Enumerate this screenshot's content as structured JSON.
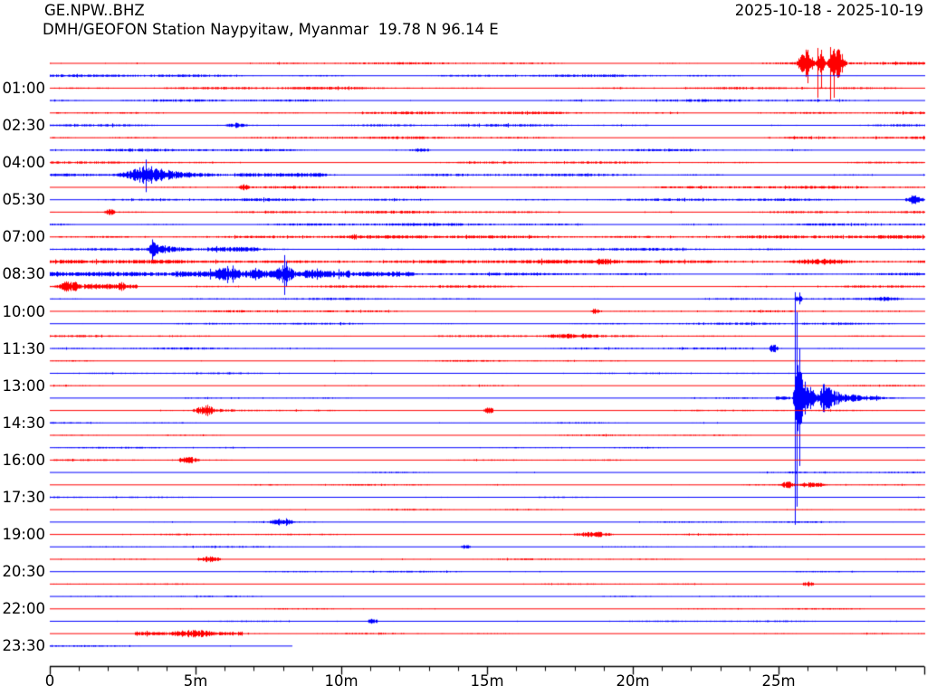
{
  "header": {
    "station_id": "GE.NPW..BHZ",
    "date_range": "2025-10-18 - 2025-10-19",
    "station_info": "DMH/GEOFON Station Naypyitaw, Myanmar  19.78 N 96.14 E"
  },
  "chart_data": {
    "type": "helicorder-dayplot",
    "channel": "GE.NPW..BHZ",
    "title": "GE.NPW..BHZ",
    "subtitle": "DMH/GEOFON Station Naypyitaw, Myanmar  19.78 N 96.14 E",
    "date_start": "2025-10-18",
    "date_end": "2025-10-19",
    "minutes_per_row": 30,
    "num_rows": 48,
    "x_axis_total_min": 30,
    "x_minor_tick_every_min": 1,
    "last_row_end_min": 8.3,
    "trace_colors": [
      "#ff0000",
      "#0000ff"
    ],
    "axis_color": "#000000",
    "background_color": "#ffffff",
    "y_ticks": [
      {
        "row": 2,
        "label": "01:00"
      },
      {
        "row": 5,
        "label": "02:30"
      },
      {
        "row": 8,
        "label": "04:00"
      },
      {
        "row": 11,
        "label": "05:30"
      },
      {
        "row": 14,
        "label": "07:00"
      },
      {
        "row": 17,
        "label": "08:30"
      },
      {
        "row": 20,
        "label": "10:00"
      },
      {
        "row": 23,
        "label": "11:30"
      },
      {
        "row": 26,
        "label": "13:00"
      },
      {
        "row": 29,
        "label": "14:30"
      },
      {
        "row": 32,
        "label": "16:00"
      },
      {
        "row": 35,
        "label": "17:30"
      },
      {
        "row": 38,
        "label": "19:00"
      },
      {
        "row": 41,
        "label": "20:30"
      },
      {
        "row": 44,
        "label": "22:00"
      },
      {
        "row": 47,
        "label": "23:30"
      }
    ],
    "x_ticks": [
      {
        "min": 0,
        "label": "0"
      },
      {
        "min": 5,
        "label": "5m"
      },
      {
        "min": 10,
        "label": "10m"
      },
      {
        "min": 15,
        "label": "15m"
      },
      {
        "min": 20,
        "label": "20m"
      },
      {
        "min": 25,
        "label": "25m"
      }
    ],
    "row_base_noise": [
      {
        "rows": [
          0,
          18
        ],
        "amp": 1.15
      },
      {
        "rows": [
          19,
          23
        ],
        "amp": 0.95
      },
      {
        "rows": [
          24,
          47
        ],
        "amp": 0.7
      }
    ],
    "events": [
      {
        "row": 0,
        "kind": "blob",
        "t0": 25.6,
        "t1": 26.25,
        "amp": 13
      },
      {
        "row": 0,
        "kind": "blob",
        "t0": 26.25,
        "t1": 26.62,
        "amp": 11
      },
      {
        "row": 0,
        "kind": "blob",
        "t0": 26.62,
        "t1": 27.35,
        "amp": 15
      },
      {
        "row": 0,
        "kind": "spike",
        "t": 26.0,
        "up": 15,
        "down": 22
      },
      {
        "row": 0,
        "kind": "spike",
        "t": 26.34,
        "up": 17,
        "down": 38
      },
      {
        "row": 0,
        "kind": "spike",
        "t": 26.46,
        "up": 15,
        "down": 28
      },
      {
        "row": 0,
        "kind": "spike",
        "t": 26.77,
        "up": 18,
        "down": 40
      },
      {
        "row": 0,
        "kind": "spike",
        "t": 26.9,
        "up": 16,
        "down": 38
      },
      {
        "row": 0,
        "kind": "spike",
        "t": 27.02,
        "up": 13,
        "down": 16
      },
      {
        "row": 5,
        "kind": "blob",
        "t0": 6.0,
        "t1": 6.8,
        "amp": 2.2
      },
      {
        "row": 7,
        "kind": "blob",
        "t0": 12.3,
        "t1": 13.1,
        "amp": 1.8
      },
      {
        "row": 9,
        "kind": "quake",
        "t0": 1.9,
        "peak": 3.3,
        "t1": 6.3,
        "amp": 10.5
      },
      {
        "row": 9,
        "kind": "spike",
        "t": 3.3,
        "up": 17,
        "down": 19
      },
      {
        "row": 9,
        "kind": "level",
        "t0": 6.3,
        "t1": 9.5,
        "amp": 1.6
      },
      {
        "row": 10,
        "kind": "blob",
        "t0": 6.45,
        "t1": 6.85,
        "amp": 2.8
      },
      {
        "row": 11,
        "kind": "blob",
        "t0": 29.3,
        "t1": 30.0,
        "amp": 4.5
      },
      {
        "row": 12,
        "kind": "blob",
        "t0": 1.85,
        "t1": 2.25,
        "amp": 3.2
      },
      {
        "row": 14,
        "kind": "level",
        "t0": 0,
        "t1": 30,
        "amp": 0.4
      },
      {
        "row": 15,
        "kind": "quake",
        "t0": 3.3,
        "peak": 3.5,
        "t1": 5.4,
        "amp": 8
      },
      {
        "row": 15,
        "kind": "spike",
        "t": 3.5,
        "up": 11,
        "down": 12
      },
      {
        "row": 15,
        "kind": "level",
        "t0": 5.4,
        "t1": 7.2,
        "amp": 1.4
      },
      {
        "row": 16,
        "kind": "level",
        "t0": 0,
        "t1": 30,
        "amp": 0.7
      },
      {
        "row": 16,
        "kind": "blob",
        "t0": 18.4,
        "t1": 19.6,
        "amp": 2
      },
      {
        "row": 16,
        "kind": "blob",
        "t0": 25.3,
        "t1": 27.6,
        "amp": 2.2
      },
      {
        "row": 17,
        "kind": "level",
        "t0": 0,
        "t1": 4.2,
        "amp": 1.5
      },
      {
        "row": 17,
        "kind": "level",
        "t0": 4.2,
        "t1": 10.3,
        "amp": 3.2
      },
      {
        "row": 17,
        "kind": "blob",
        "t0": 5.6,
        "t1": 6.5,
        "amp": 4.5
      },
      {
        "row": 17,
        "kind": "blob",
        "t0": 6.8,
        "t1": 7.5,
        "amp": 3.5
      },
      {
        "row": 17,
        "kind": "blob",
        "t0": 7.7,
        "t1": 8.4,
        "amp": 6.5
      },
      {
        "row": 17,
        "kind": "blob",
        "t0": 8.7,
        "t1": 9.4,
        "amp": 3.5
      },
      {
        "row": 17,
        "kind": "spike",
        "t": 6.1,
        "up": 9,
        "down": 10
      },
      {
        "row": 17,
        "kind": "spike",
        "t": 8.05,
        "up": 21,
        "down": 23
      },
      {
        "row": 17,
        "kind": "level",
        "t0": 10.3,
        "t1": 12.5,
        "amp": 1.6
      },
      {
        "row": 18,
        "kind": "blob",
        "t0": 0.2,
        "t1": 1.15,
        "amp": 5
      },
      {
        "row": 18,
        "kind": "level",
        "t0": 1.15,
        "t1": 3.0,
        "amp": 2.0
      },
      {
        "row": 18,
        "kind": "blob",
        "t0": 2.25,
        "t1": 2.6,
        "amp": 3.0
      },
      {
        "row": 19,
        "kind": "spike",
        "t": 25.7,
        "up": 7,
        "down": 6
      },
      {
        "row": 19,
        "kind": "blob",
        "t0": 25.55,
        "t1": 25.85,
        "amp": 3.5
      },
      {
        "row": 19,
        "kind": "blob",
        "t0": 28.0,
        "t1": 29.3,
        "amp": 1.6
      },
      {
        "row": 20,
        "kind": "blob",
        "t0": 18.5,
        "t1": 18.95,
        "amp": 2.2
      },
      {
        "row": 22,
        "kind": "blob",
        "t0": 16.8,
        "t1": 18.9,
        "amp": 1.6
      },
      {
        "row": 23,
        "kind": "blob",
        "t0": 24.65,
        "t1": 25.0,
        "amp": 4.5
      },
      {
        "row": 27,
        "kind": "level",
        "t0": 24.9,
        "t1": 25.4,
        "amp": 1.5
      },
      {
        "row": 27,
        "kind": "quake",
        "t0": 25.42,
        "peak": 25.62,
        "t1": 26.9,
        "amp": 43
      },
      {
        "row": 27,
        "kind": "quake",
        "t0": 26.3,
        "peak": 26.5,
        "t1": 29.4,
        "amp": 12
      },
      {
        "row": 27,
        "kind": "spike",
        "t": 25.56,
        "up": 117,
        "down": 140
      },
      {
        "row": 27,
        "kind": "spike",
        "t": 25.63,
        "up": 95,
        "down": 120
      },
      {
        "row": 27,
        "kind": "spike",
        "t": 25.7,
        "up": 55,
        "down": 75
      },
      {
        "row": 28,
        "kind": "blob",
        "t0": 4.85,
        "t1": 5.7,
        "amp": 3.8
      },
      {
        "row": 28,
        "kind": "quake",
        "t0": 5.0,
        "peak": 5.3,
        "t1": 8.0,
        "amp": 2.6
      },
      {
        "row": 28,
        "kind": "blob",
        "t0": 14.85,
        "t1": 15.25,
        "amp": 4.2
      },
      {
        "row": 32,
        "kind": "blob",
        "t0": 4.3,
        "t1": 5.15,
        "amp": 3.2
      },
      {
        "row": 34,
        "kind": "blob",
        "t0": 25.05,
        "t1": 25.55,
        "amp": 3.8
      },
      {
        "row": 34,
        "kind": "blob",
        "t0": 25.55,
        "t1": 26.7,
        "amp": 2.2
      },
      {
        "row": 37,
        "kind": "blob",
        "t0": 7.5,
        "t1": 8.45,
        "amp": 3.2
      },
      {
        "row": 38,
        "kind": "blob",
        "t0": 17.95,
        "t1": 19.35,
        "amp": 2.6
      },
      {
        "row": 39,
        "kind": "blob",
        "t0": 14.05,
        "t1": 14.45,
        "amp": 2.2
      },
      {
        "row": 40,
        "kind": "blob",
        "t0": 5.0,
        "t1": 5.95,
        "amp": 3.2
      },
      {
        "row": 42,
        "kind": "blob",
        "t0": 25.8,
        "t1": 26.25,
        "amp": 2.4
      },
      {
        "row": 45,
        "kind": "blob",
        "t0": 10.85,
        "t1": 11.25,
        "amp": 2.2
      },
      {
        "row": 46,
        "kind": "level",
        "t0": 2.9,
        "t1": 6.6,
        "amp": 1.6
      },
      {
        "row": 46,
        "kind": "blob",
        "t0": 4.1,
        "t1": 5.7,
        "amp": 2.4
      }
    ]
  }
}
